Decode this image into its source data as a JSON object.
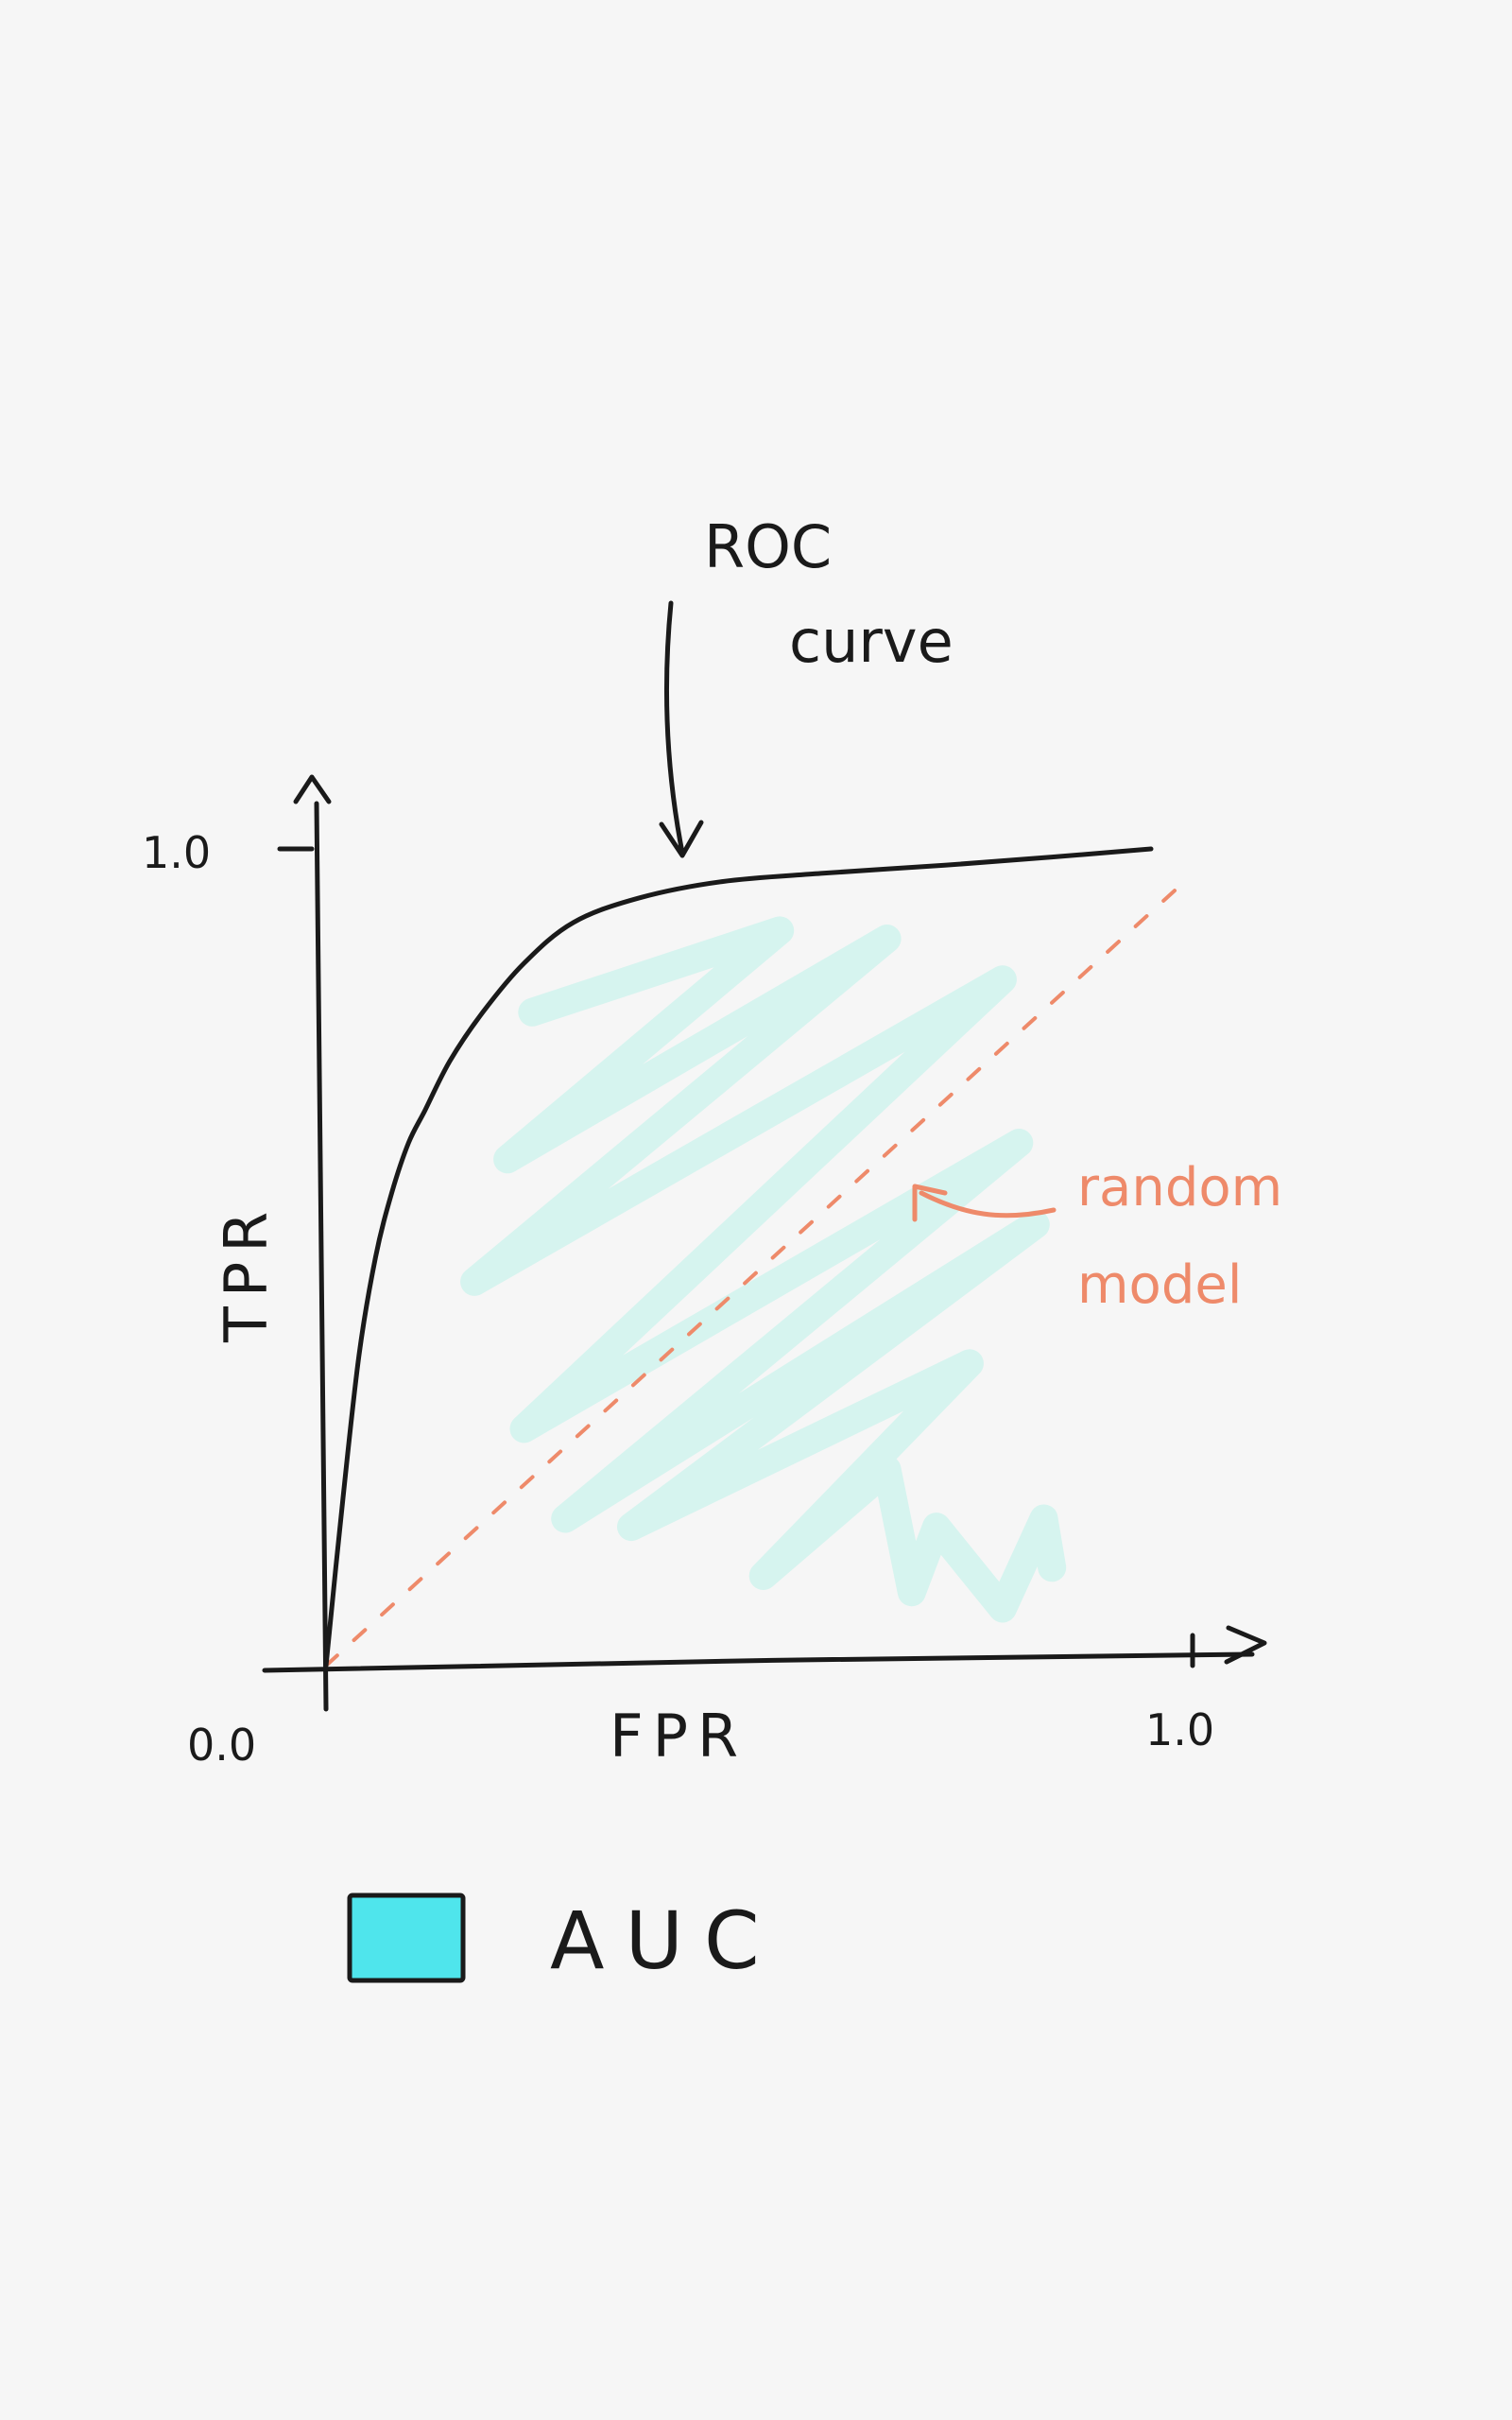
{
  "chart_data": {
    "type": "line",
    "xlabel": "FPR",
    "ylabel": "TPR",
    "xlim": [
      0.0,
      1.0
    ],
    "ylim": [
      0.0,
      1.0
    ],
    "x_ticks": [
      "0.0",
      "1.0"
    ],
    "y_ticks": [
      "1.0"
    ],
    "grid": false,
    "series": [
      {
        "name": "ROC curve",
        "style": "solid",
        "color": "#1a1a1a",
        "x": [
          0.0,
          0.02,
          0.04,
          0.06,
          0.08,
          0.1,
          0.12,
          0.15,
          0.19,
          0.24,
          0.3,
          0.38,
          0.48,
          0.6,
          0.75,
          0.88,
          1.0
        ],
        "y": [
          0.0,
          0.2,
          0.38,
          0.5,
          0.58,
          0.64,
          0.68,
          0.74,
          0.8,
          0.86,
          0.91,
          0.94,
          0.96,
          0.97,
          0.98,
          0.99,
          1.0
        ]
      },
      {
        "name": "random model",
        "style": "dashed",
        "color": "#ee8a6a",
        "x": [
          0.0,
          1.0
        ],
        "y": [
          0.0,
          1.0
        ]
      }
    ],
    "annotations": [
      {
        "text": "ROC curve",
        "lines": [
          "ROC",
          "curve"
        ]
      },
      {
        "text": "random model",
        "lines": [
          "random",
          "model"
        ]
      }
    ],
    "legend": {
      "placement": "bottom-left",
      "entries": [
        {
          "label": "AUC",
          "color": "#4fe5ec"
        }
      ]
    },
    "auc_fill_color": "#d4f3ee"
  }
}
